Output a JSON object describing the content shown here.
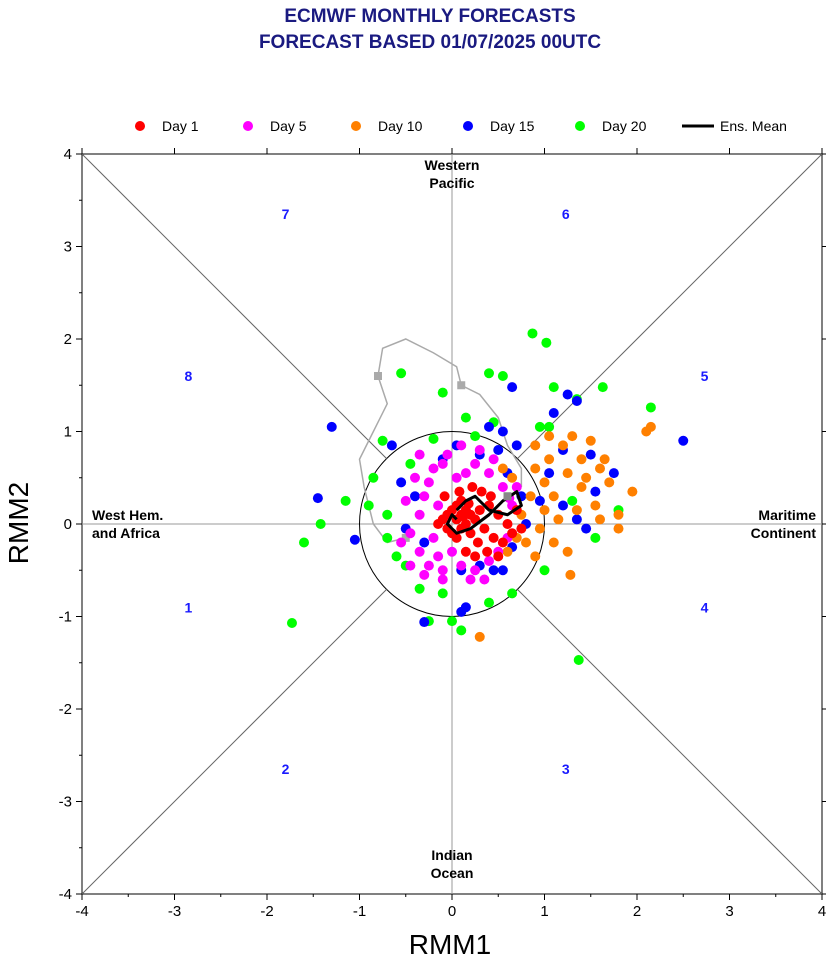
{
  "chart_data": {
    "type": "scatter",
    "title_lines": [
      "ECMWF MONTHLY FORECASTS",
      "FORECAST  BASED 01/07/2025 00UTC"
    ],
    "xlabel": "RMM1",
    "ylabel": "RMM2",
    "xlim": [
      -4,
      4
    ],
    "ylim": [
      -4,
      4
    ],
    "xticks": [
      -4,
      -3,
      -2,
      -1,
      0,
      1,
      2,
      3,
      4
    ],
    "yticks": [
      -4,
      -3,
      -2,
      -1,
      0,
      1,
      2,
      3,
      4
    ],
    "legend_position": "top",
    "region_labels": [
      {
        "lines": [
          "Western",
          "Pacific"
        ],
        "pos": "top"
      },
      {
        "lines": [
          "Indian",
          "Ocean"
        ],
        "pos": "bottom"
      },
      {
        "lines": [
          "West Hem.",
          "and Africa"
        ],
        "pos": "left"
      },
      {
        "lines": [
          "Maritime",
          "Continent"
        ],
        "pos": "right"
      }
    ],
    "phase_labels": [
      {
        "label": "1",
        "x": -2.85,
        "y": -0.9
      },
      {
        "label": "2",
        "x": -1.8,
        "y": -2.65
      },
      {
        "label": "3",
        "x": 1.23,
        "y": -2.65
      },
      {
        "label": "4",
        "x": 2.73,
        "y": -0.9
      },
      {
        "label": "5",
        "x": 2.73,
        "y": 1.6
      },
      {
        "label": "6",
        "x": 1.23,
        "y": 3.35
      },
      {
        "label": "7",
        "x": -1.8,
        "y": 3.35
      },
      {
        "label": "8",
        "x": -2.85,
        "y": 1.6
      }
    ],
    "series": [
      {
        "name": "Day 1",
        "color": "#ff0000",
        "marker": "circle",
        "points": [
          [
            0.05,
            0.05
          ],
          [
            0.1,
            0.1
          ],
          [
            0.0,
            0.15
          ],
          [
            0.15,
            0.0
          ],
          [
            -0.05,
            -0.05
          ],
          [
            0.1,
            -0.05
          ],
          [
            0.2,
            0.1
          ],
          [
            0.05,
            0.2
          ],
          [
            -0.1,
            0.05
          ],
          [
            0.15,
            0.15
          ],
          [
            0.0,
            -0.1
          ],
          [
            0.25,
            0.05
          ],
          [
            -0.05,
            0.1
          ],
          [
            0.1,
            0.25
          ],
          [
            0.2,
            -0.1
          ],
          [
            0.3,
            0.15
          ],
          [
            0.05,
            -0.15
          ],
          [
            -0.15,
            0.0
          ],
          [
            0.18,
            0.22
          ],
          [
            0.12,
            0.08
          ],
          [
            0.4,
            0.2
          ],
          [
            0.35,
            -0.05
          ],
          [
            0.28,
            -0.2
          ],
          [
            0.45,
            -0.15
          ],
          [
            0.55,
            -0.2
          ],
          [
            0.6,
            0.0
          ],
          [
            0.5,
            0.1
          ],
          [
            0.65,
            -0.1
          ],
          [
            0.38,
            -0.3
          ],
          [
            0.25,
            -0.35
          ],
          [
            0.15,
            -0.3
          ],
          [
            0.5,
            -0.35
          ],
          [
            0.32,
            0.35
          ],
          [
            0.22,
            0.4
          ],
          [
            0.42,
            0.3
          ],
          [
            0.08,
            0.35
          ],
          [
            -0.08,
            0.3
          ],
          [
            0.7,
            0.15
          ],
          [
            0.75,
            -0.05
          ]
        ]
      },
      {
        "name": "Day 5",
        "color": "#ff00ff",
        "marker": "circle",
        "points": [
          [
            -0.2,
            0.6
          ],
          [
            -0.1,
            0.65
          ],
          [
            0.05,
            0.5
          ],
          [
            -0.3,
            0.3
          ],
          [
            -0.35,
            0.1
          ],
          [
            -0.45,
            -0.1
          ],
          [
            -0.35,
            -0.3
          ],
          [
            -0.25,
            -0.45
          ],
          [
            -0.1,
            -0.5
          ],
          [
            0.1,
            -0.45
          ],
          [
            0.25,
            -0.5
          ],
          [
            0.4,
            -0.4
          ],
          [
            0.5,
            -0.3
          ],
          [
            0.6,
            -0.15
          ],
          [
            0.65,
            0.2
          ],
          [
            0.55,
            0.4
          ],
          [
            0.4,
            0.55
          ],
          [
            0.25,
            0.65
          ],
          [
            -0.05,
            0.75
          ],
          [
            -0.25,
            0.45
          ],
          [
            -0.4,
            0.5
          ],
          [
            -0.5,
            0.25
          ],
          [
            -0.55,
            -0.2
          ],
          [
            -0.45,
            -0.45
          ],
          [
            -0.3,
            -0.55
          ],
          [
            -0.15,
            -0.35
          ],
          [
            0.0,
            -0.3
          ],
          [
            0.2,
            -0.6
          ],
          [
            0.35,
            -0.6
          ],
          [
            0.7,
            0.4
          ],
          [
            0.3,
            0.8
          ],
          [
            0.1,
            0.85
          ],
          [
            -0.15,
            0.2
          ],
          [
            -0.2,
            -0.15
          ],
          [
            0.15,
            0.55
          ],
          [
            -0.1,
            -0.6
          ],
          [
            0.45,
            0.7
          ],
          [
            -0.35,
            0.75
          ],
          [
            0.62,
            0.28
          ]
        ]
      },
      {
        "name": "Day 10",
        "color": "#ff8000",
        "marker": "circle",
        "points": [
          [
            0.9,
            0.6
          ],
          [
            1.0,
            0.45
          ],
          [
            1.1,
            0.3
          ],
          [
            1.25,
            0.55
          ],
          [
            1.4,
            0.4
          ],
          [
            1.55,
            0.2
          ],
          [
            1.7,
            0.45
          ],
          [
            1.8,
            0.1
          ],
          [
            1.6,
            0.6
          ],
          [
            1.4,
            0.7
          ],
          [
            1.2,
            0.85
          ],
          [
            1.05,
            0.7
          ],
          [
            1.5,
            0.9
          ],
          [
            1.35,
            0.15
          ],
          [
            1.15,
            0.05
          ],
          [
            1.0,
            0.15
          ],
          [
            0.85,
            0.3
          ],
          [
            0.95,
            -0.05
          ],
          [
            1.1,
            -0.2
          ],
          [
            1.25,
            -0.3
          ],
          [
            0.8,
            -0.2
          ],
          [
            0.7,
            -0.15
          ],
          [
            0.75,
            0.1
          ],
          [
            2.1,
            1.0
          ],
          [
            2.15,
            1.05
          ],
          [
            1.95,
            0.35
          ],
          [
            1.3,
            0.95
          ],
          [
            1.65,
            0.7
          ],
          [
            1.45,
            0.5
          ],
          [
            1.6,
            0.05
          ],
          [
            1.8,
            -0.05
          ],
          [
            0.9,
            0.85
          ],
          [
            0.3,
            -1.22
          ],
          [
            1.28,
            -0.55
          ],
          [
            0.6,
            -0.3
          ],
          [
            0.55,
            0.6
          ],
          [
            0.9,
            -0.35
          ],
          [
            1.05,
            0.95
          ],
          [
            0.65,
            0.5
          ]
        ]
      },
      {
        "name": "Day 15",
        "color": "#0000ff",
        "marker": "circle",
        "points": [
          [
            -1.3,
            1.05
          ],
          [
            -1.45,
            0.28
          ],
          [
            -1.05,
            -0.17
          ],
          [
            -0.65,
            0.85
          ],
          [
            -0.55,
            0.45
          ],
          [
            -0.4,
            0.3
          ],
          [
            -0.5,
            -0.05
          ],
          [
            -0.3,
            -0.2
          ],
          [
            0.1,
            -0.95
          ],
          [
            -0.3,
            -1.06
          ],
          [
            0.15,
            -0.9
          ],
          [
            0.1,
            -0.5
          ],
          [
            0.3,
            -0.45
          ],
          [
            0.45,
            -0.5
          ],
          [
            0.55,
            -0.5
          ],
          [
            0.65,
            -0.25
          ],
          [
            0.8,
            0.0
          ],
          [
            0.75,
            0.3
          ],
          [
            0.6,
            0.55
          ],
          [
            0.5,
            0.8
          ],
          [
            0.55,
            1.0
          ],
          [
            0.7,
            0.85
          ],
          [
            0.65,
            1.48
          ],
          [
            1.1,
            1.2
          ],
          [
            1.25,
            1.4
          ],
          [
            1.35,
            1.33
          ],
          [
            1.2,
            0.8
          ],
          [
            1.5,
            0.75
          ],
          [
            1.55,
            0.35
          ],
          [
            1.35,
            0.05
          ],
          [
            1.45,
            -0.05
          ],
          [
            1.75,
            0.55
          ],
          [
            2.5,
            0.9
          ],
          [
            1.05,
            0.55
          ],
          [
            0.95,
            0.25
          ],
          [
            1.2,
            0.2
          ],
          [
            0.3,
            0.75
          ],
          [
            -0.1,
            0.7
          ],
          [
            0.05,
            0.85
          ],
          [
            0.4,
            1.05
          ]
        ]
      },
      {
        "name": "Day 20",
        "color": "#00ff00",
        "marker": "circle",
        "points": [
          [
            -1.73,
            -1.07
          ],
          [
            -1.6,
            -0.2
          ],
          [
            -1.42,
            0.0
          ],
          [
            -1.15,
            0.25
          ],
          [
            -0.85,
            0.5
          ],
          [
            -0.75,
            0.9
          ],
          [
            -0.55,
            1.63
          ],
          [
            -0.1,
            1.42
          ],
          [
            0.4,
            1.63
          ],
          [
            0.55,
            1.6
          ],
          [
            0.87,
            2.06
          ],
          [
            1.02,
            1.96
          ],
          [
            1.1,
            1.48
          ],
          [
            1.63,
            1.48
          ],
          [
            2.15,
            1.26
          ],
          [
            0.95,
            1.05
          ],
          [
            1.05,
            1.05
          ],
          [
            1.35,
            1.35
          ],
          [
            0.25,
            0.95
          ],
          [
            0.45,
            1.1
          ],
          [
            0.15,
            1.15
          ],
          [
            -0.2,
            0.92
          ],
          [
            -0.9,
            0.2
          ],
          [
            -0.7,
            -0.15
          ],
          [
            -0.6,
            -0.35
          ],
          [
            -0.5,
            -0.45
          ],
          [
            -0.35,
            -0.7
          ],
          [
            -0.1,
            -0.75
          ],
          [
            0.0,
            -1.05
          ],
          [
            0.1,
            -1.15
          ],
          [
            0.4,
            -0.85
          ],
          [
            0.65,
            -0.75
          ],
          [
            1.0,
            -0.5
          ],
          [
            1.3,
            0.25
          ],
          [
            1.55,
            -0.15
          ],
          [
            1.8,
            0.15
          ],
          [
            1.37,
            -1.47
          ],
          [
            -0.25,
            -1.05
          ],
          [
            -0.7,
            0.1
          ],
          [
            -0.45,
            0.65
          ]
        ]
      }
    ],
    "ens_mean": {
      "name": "Ens. Mean",
      "color": "#000000",
      "points": [
        [
          0.05,
          0.05
        ],
        [
          0.0,
          0.1
        ],
        [
          -0.05,
          0.0
        ],
        [
          0.05,
          -0.1
        ],
        [
          0.2,
          -0.05
        ],
        [
          0.4,
          0.1
        ],
        [
          0.55,
          0.25
        ],
        [
          0.7,
          0.35
        ],
        [
          0.75,
          0.2
        ],
        [
          0.6,
          0.1
        ],
        [
          0.4,
          0.15
        ],
        [
          0.25,
          0.3
        ],
        [
          0.15,
          0.25
        ],
        [
          0.05,
          0.15
        ]
      ]
    },
    "extra_track": {
      "color": "#aaaaaa",
      "points": [
        [
          -0.5,
          -0.15
        ],
        [
          -0.7,
          -0.2
        ],
        [
          -0.85,
          0.0
        ],
        [
          -0.95,
          0.4
        ],
        [
          -1.0,
          0.7
        ],
        [
          -0.9,
          0.9
        ],
        [
          -0.7,
          1.3
        ],
        [
          -0.8,
          1.6
        ],
        [
          -0.75,
          1.9
        ],
        [
          -0.5,
          2.0
        ],
        [
          -0.2,
          1.85
        ],
        [
          0.05,
          1.7
        ],
        [
          0.1,
          1.5
        ],
        [
          0.3,
          1.4
        ],
        [
          0.5,
          1.15
        ],
        [
          0.6,
          0.85
        ],
        [
          0.75,
          0.6
        ],
        [
          0.75,
          0.4
        ]
      ]
    }
  }
}
